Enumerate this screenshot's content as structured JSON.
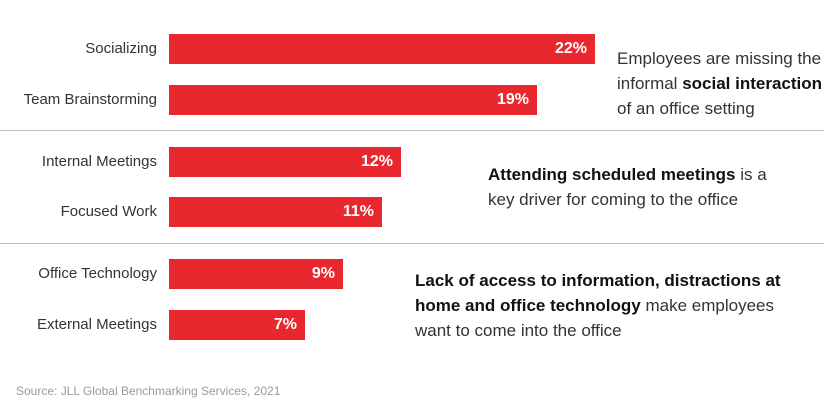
{
  "chart_data": {
    "type": "bar",
    "orientation": "horizontal",
    "categories": [
      "Socializing",
      "Team Brainstorming",
      "Internal Meetings",
      "Focused Work",
      "Office Technology",
      "External Meetings"
    ],
    "values": [
      22,
      19,
      12,
      11,
      9,
      7
    ],
    "value_labels": [
      "22%",
      "19%",
      "12%",
      "11%",
      "9%",
      "7%"
    ],
    "bar_color": "#e8282e",
    "xlim": [
      0,
      22
    ],
    "grid": false
  },
  "notes": [
    {
      "pre": "Employees are missing the informal ",
      "bold": "social interaction",
      "post": " of an office setting"
    },
    {
      "pre": "",
      "bold": "Attending scheduled meetings",
      "post": " is a key driver for coming to the office"
    },
    {
      "pre": "",
      "bold": "Lack of access to information, distractions at home and office technology",
      "post": " make employees want to come into the office"
    }
  ],
  "source": "Source: JLL Global Benchmarking Services, 2021"
}
